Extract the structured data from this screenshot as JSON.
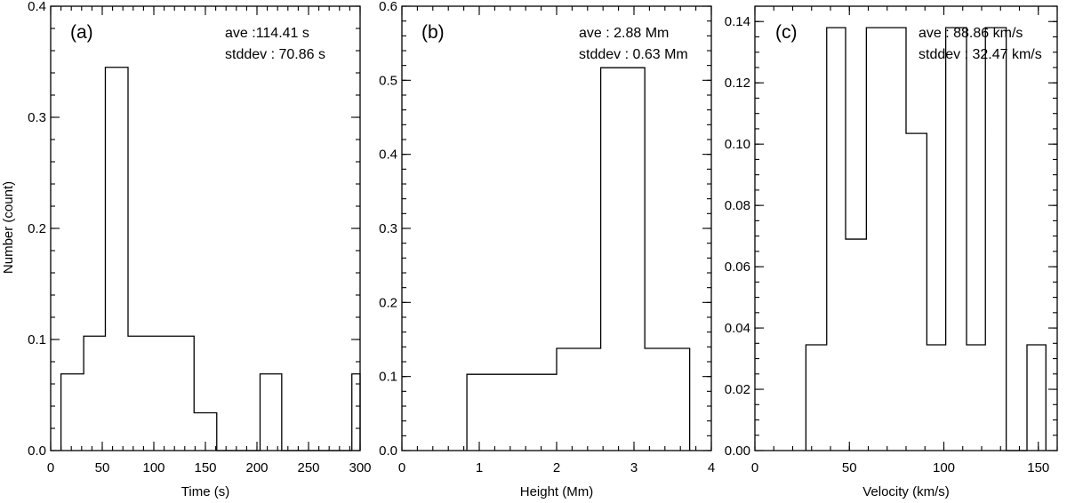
{
  "chart_data": [
    {
      "type": "histogram",
      "panel_label": "(a)",
      "xlabel": "Time (s)",
      "ylabel": "Number (count)",
      "xlim": [
        0,
        300
      ],
      "ylim": [
        0,
        0.4
      ],
      "xticks": [
        0,
        50,
        100,
        150,
        200,
        250,
        300
      ],
      "xtick_labels": [
        "0",
        "50",
        "100",
        "150",
        "200",
        "250",
        "300"
      ],
      "x_minor_step": 10,
      "yticks": [
        0,
        0.1,
        0.2,
        0.3,
        0.4
      ],
      "ytick_labels": [
        "0.0",
        "0.1",
        "0.2",
        "0.3",
        "0.4"
      ],
      "y_minor_step": 0.02,
      "annotations": [
        "ave :114.41 s",
        "stddev : 70.86 s"
      ],
      "bins": [
        {
          "x0": 10,
          "x1": 32,
          "value": 0.069
        },
        {
          "x0": 32,
          "x1": 53,
          "value": 0.103
        },
        {
          "x0": 53,
          "x1": 75,
          "value": 0.345
        },
        {
          "x0": 75,
          "x1": 139,
          "value": 0.103
        },
        {
          "x0": 139,
          "x1": 161,
          "value": 0.034
        },
        {
          "x0": 161,
          "x1": 203,
          "value": 0.0
        },
        {
          "x0": 203,
          "x1": 224,
          "value": 0.069
        },
        {
          "x0": 224,
          "x1": 292,
          "value": 0.0
        },
        {
          "x0": 292,
          "x1": 300,
          "value": 0.069
        }
      ]
    },
    {
      "type": "histogram",
      "panel_label": "(b)",
      "xlabel": "Height (Mm)",
      "ylabel": "",
      "xlim": [
        0,
        4
      ],
      "ylim": [
        0,
        0.6
      ],
      "xticks": [
        0,
        1,
        2,
        3,
        4
      ],
      "xtick_labels": [
        "0",
        "1",
        "2",
        "3",
        "4"
      ],
      "x_minor_step": 0.2,
      "yticks": [
        0,
        0.1,
        0.2,
        0.3,
        0.4,
        0.5,
        0.6
      ],
      "ytick_labels": [
        "0.0",
        "0.1",
        "0.2",
        "0.3",
        "0.4",
        "0.5",
        "0.6"
      ],
      "y_minor_step": 0.02,
      "annotations": [
        "ave :  2.88 Mm",
        "stddev :  0.63 Mm"
      ],
      "bins": [
        {
          "x0": 0.84,
          "x1": 2.0,
          "value": 0.103
        },
        {
          "x0": 2.0,
          "x1": 2.57,
          "value": 0.138
        },
        {
          "x0": 2.57,
          "x1": 3.14,
          "value": 0.517
        },
        {
          "x0": 3.14,
          "x1": 3.72,
          "value": 0.138
        }
      ]
    },
    {
      "type": "histogram",
      "panel_label": "(c)",
      "xlabel": "Velocity (km/s)",
      "ylabel": "",
      "xlim": [
        0,
        160
      ],
      "ylim": [
        0,
        0.145
      ],
      "xticks": [
        0,
        50,
        100,
        150
      ],
      "xtick_labels": [
        "0",
        "50",
        "100",
        "150"
      ],
      "x_minor_step": 10,
      "yticks": [
        0,
        0.02,
        0.04,
        0.06,
        0.08,
        0.1,
        0.12,
        0.14
      ],
      "ytick_labels": [
        "0.00",
        "0.02",
        "0.04",
        "0.06",
        "0.08",
        "0.10",
        "0.12",
        "0.14"
      ],
      "y_minor_step": 0.005,
      "annotations": [
        "ave : 88.86 km/s",
        "stddev : 32.47 km/s"
      ],
      "bins": [
        {
          "x0": 27,
          "x1": 38,
          "value": 0.0345
        },
        {
          "x0": 38,
          "x1": 48,
          "value": 0.138
        },
        {
          "x0": 48,
          "x1": 59,
          "value": 0.069
        },
        {
          "x0": 59,
          "x1": 80,
          "value": 0.138
        },
        {
          "x0": 80,
          "x1": 91,
          "value": 0.1035
        },
        {
          "x0": 91,
          "x1": 101,
          "value": 0.0345
        },
        {
          "x0": 101,
          "x1": 112,
          "value": 0.138
        },
        {
          "x0": 112,
          "x1": 122,
          "value": 0.0345
        },
        {
          "x0": 122,
          "x1": 133,
          "value": 0.138
        },
        {
          "x0": 133,
          "x1": 144,
          "value": 0.0
        },
        {
          "x0": 144,
          "x1": 154,
          "value": 0.0345
        }
      ]
    }
  ]
}
